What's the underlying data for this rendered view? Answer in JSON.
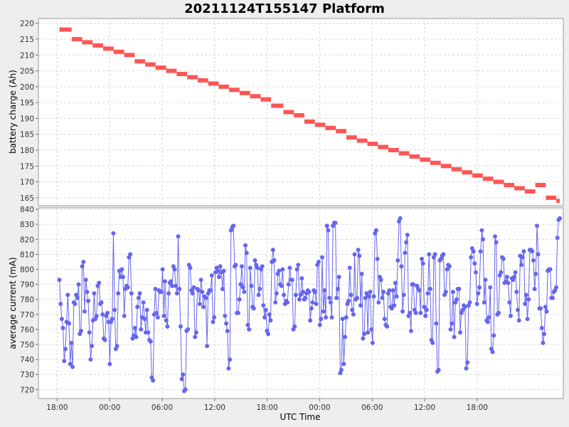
{
  "chart_data": {
    "title": "20211124T155147 Platform",
    "xlabel": "UTC Time",
    "x_ticks": [
      "18:00",
      "00:00",
      "06:00",
      "12:00",
      "18:00",
      "00:00",
      "06:00",
      "12:00",
      "18:00"
    ],
    "x_tick_hours": [
      2.15,
      8.15,
      14.15,
      20.15,
      26.15,
      32.15,
      38.15,
      44.15,
      50.15
    ],
    "xlim_hours": [
      0,
      55.0
    ],
    "grid": true,
    "charts": [
      {
        "type": "step",
        "ylabel": "battery charge (Ah)",
        "ylim": [
          162.5,
          221.5
        ],
        "yticks": [
          165,
          170,
          175,
          180,
          185,
          190,
          195,
          200,
          205,
          210,
          215,
          220
        ],
        "color": "#ff5555",
        "steps": [
          [
            2.4,
            3.8,
            218
          ],
          [
            3.8,
            5.0,
            215
          ],
          [
            5.0,
            6.2,
            214
          ],
          [
            6.2,
            7.4,
            213
          ],
          [
            7.4,
            8.6,
            212
          ],
          [
            8.6,
            9.8,
            211
          ],
          [
            9.8,
            11.0,
            210
          ],
          [
            11.0,
            12.2,
            208
          ],
          [
            12.2,
            13.4,
            207
          ],
          [
            13.4,
            14.6,
            206
          ],
          [
            14.6,
            15.8,
            205
          ],
          [
            15.8,
            17.0,
            204
          ],
          [
            17.0,
            18.2,
            203
          ],
          [
            18.2,
            19.4,
            202
          ],
          [
            19.4,
            20.6,
            201
          ],
          [
            20.6,
            21.8,
            200
          ],
          [
            21.8,
            23.0,
            199
          ],
          [
            23.0,
            24.2,
            198
          ],
          [
            24.2,
            25.4,
            197
          ],
          [
            25.4,
            26.6,
            196
          ],
          [
            26.6,
            28.0,
            194
          ],
          [
            28.0,
            29.2,
            192
          ],
          [
            29.2,
            30.4,
            191
          ],
          [
            30.4,
            31.6,
            189
          ],
          [
            31.6,
            32.8,
            188
          ],
          [
            32.8,
            34.0,
            187
          ],
          [
            34.0,
            35.2,
            186
          ],
          [
            35.2,
            36.4,
            184
          ],
          [
            36.4,
            37.6,
            183
          ],
          [
            37.6,
            38.8,
            182
          ],
          [
            38.8,
            40.0,
            181
          ],
          [
            40.0,
            41.2,
            180
          ],
          [
            41.2,
            42.4,
            179
          ],
          [
            42.4,
            43.6,
            178
          ],
          [
            43.6,
            44.8,
            177
          ],
          [
            44.8,
            46.0,
            176
          ],
          [
            46.0,
            47.2,
            175
          ],
          [
            47.2,
            48.4,
            174
          ],
          [
            48.4,
            49.6,
            173
          ],
          [
            49.6,
            50.8,
            172
          ],
          [
            50.8,
            52.0,
            171
          ],
          [
            52.0,
            53.2,
            170
          ],
          [
            53.2,
            54.4,
            169
          ],
          [
            54.4,
            55.6,
            168
          ],
          [
            55.6,
            56.8,
            167
          ],
          [
            56.8,
            58.0,
            169
          ],
          [
            58.0,
            59.2,
            165
          ],
          [
            59.2,
            59.6,
            164
          ]
        ]
      },
      {
        "type": "line",
        "ylabel": "average current (mA)",
        "ylim": [
          714,
          841
        ],
        "yticks": [
          720,
          730,
          740,
          750,
          760,
          770,
          780,
          790,
          800,
          810,
          820,
          830,
          840
        ],
        "color": "#6666ee",
        "values": [
          793,
          777,
          767,
          761,
          739,
          747,
          765,
          783,
          764,
          737,
          751,
          735,
          778,
          777,
          783,
          781,
          790,
          757,
          759,
          802,
          805,
          772,
          793,
          785,
          779,
          758,
          740,
          749,
          766,
          784,
          767,
          769,
          789,
          791,
          777,
          778,
          770,
          754,
          753,
          769,
          771,
          765,
          737,
          765,
          767,
          824,
          773,
          747,
          749,
          784,
          799,
          795,
          800,
          795,
          769,
          787,
          789,
          788,
          808,
          810,
          784,
          754,
          756,
          761,
          755,
          775,
          781,
          784,
          760,
          768,
          778,
          767,
          758,
          773,
          758,
          753,
          752,
          728,
          726,
          770,
          787,
          771,
          768,
          786,
          785,
          785,
          800,
          769,
          792,
          766,
          762,
          784,
          791,
          792,
          789,
          802,
          800,
          789,
          784,
          822,
          787,
          762,
          727,
          730,
          719,
          720,
          759,
          760,
          803,
          801,
          786,
          784,
          788,
          755,
          758,
          787,
          786,
          777,
          793,
          785,
          775,
          782,
          781,
          749,
          784,
          786,
          786,
          796,
          765,
          768,
          798,
          801,
          799,
          795,
          802,
          798,
          787,
          799,
          769,
          764,
          759,
          734,
          740,
          826,
          828,
          829,
          802,
          803,
          771,
          771,
          780,
          790,
          802,
          788,
          785,
          816,
          811,
          763,
          760,
          801,
          789,
          775,
          774,
          806,
          803,
          801,
          783,
          787,
          800,
          802,
          776,
          768,
          773,
          759,
          757,
          770,
          766,
          805,
          813,
          806,
          778,
          784,
          797,
          799,
          790,
          789,
          800,
          783,
          777,
          779,
          778,
          790,
          801,
          793,
          793,
          760,
          762,
          783,
          800,
          803,
          780,
          783,
          794,
          785,
          780,
          781,
          784,
          786,
          785,
          766,
          774,
          778,
          786,
          785,
          777,
          803,
          805,
          763,
          767,
          808,
          772,
          786,
          768,
          829,
          826,
          781,
          778,
          768,
          829,
          831,
          831,
          781,
          787,
          795,
          731,
          733,
          767,
          737,
          755,
          768,
          777,
          779,
          801,
          783,
          773,
          770,
          810,
          780,
          781,
          813,
          809,
          776,
          797,
          754,
          757,
          781,
          784,
          758,
          782,
          785,
          760,
          751,
          782,
          824,
          826,
          807,
          778,
          795,
          793,
          781,
          785,
          767,
          763,
          762,
          784,
          786,
          775,
          774,
          786,
          776,
          791,
          782,
          806,
          832,
          834,
          802,
          772,
          783,
          811,
          818,
          823,
          769,
          771,
          759,
          790,
          790,
          773,
          771,
          789,
          787,
          786,
          771,
          807,
          804,
          775,
          769,
          773,
          784,
          810,
          787,
          753,
          751,
          808,
          810,
          764,
          732,
          733,
          806,
          807,
          809,
          810,
          783,
          785,
          800,
          803,
          802,
          760,
          764,
          785,
          755,
          778,
          780,
          787,
          787,
          758,
          771,
          773,
          776,
          775,
          734,
          738,
          776,
          778,
          808,
          814,
          812,
          804,
          798,
          777,
          784,
          788,
          812,
          826,
          820,
          778,
          793,
          766,
          765,
          768,
          788,
          747,
          745,
          756,
          822,
          818,
          770,
          771,
          796,
          798,
          808,
          807,
          791,
          792,
          795,
          791,
          778,
          769,
          794,
          793,
          795,
          798,
          785,
          773,
          766,
          809,
          803,
          808,
          812,
          777,
          783,
          767,
          780,
          813,
          813,
          812,
          806,
          787,
          797,
          829,
          810,
          774,
          774,
          761,
          751,
          757,
          775,
          772,
          799,
          800,
          800,
          781,
          781,
          785,
          786,
          788,
          821,
          833,
          834
        ]
      }
    ]
  }
}
